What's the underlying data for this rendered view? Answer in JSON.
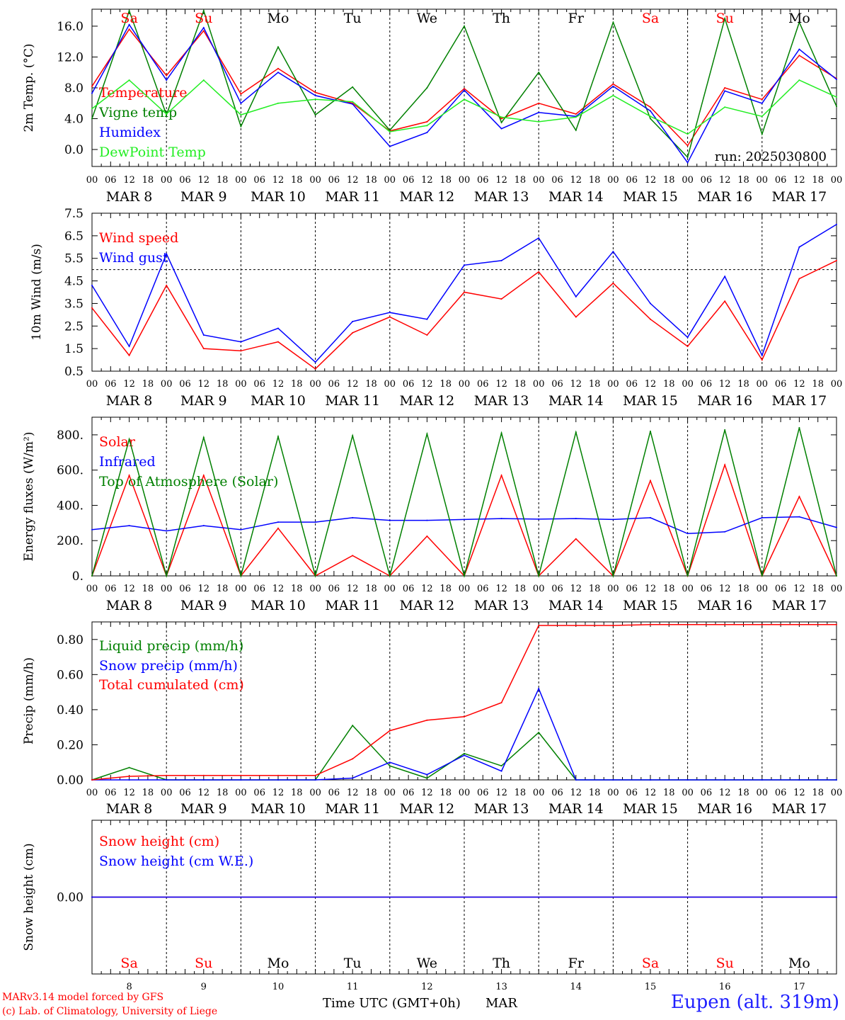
{
  "colors": {
    "red": "#ff0000",
    "blue": "#0000ff",
    "dark_green": "#008000",
    "light_green": "#22ee22",
    "black": "#000000"
  },
  "days": {
    "abbrev": [
      "Sa",
      "Su",
      "Mo",
      "Tu",
      "We",
      "Th",
      "Fr",
      "Sa",
      "Su",
      "Mo"
    ],
    "abbrev_colors": [
      "red",
      "red",
      "black",
      "black",
      "black",
      "black",
      "black",
      "red",
      "red",
      "black"
    ],
    "dates": [
      "MAR  8",
      "MAR  9",
      "MAR 10",
      "MAR 11",
      "MAR 12",
      "MAR 13",
      "MAR 14",
      "MAR 15",
      "MAR 16",
      "MAR 17"
    ],
    "numbers": [
      "8",
      "9",
      "10",
      "11",
      "12",
      "13",
      "14",
      "15",
      "16",
      "17"
    ],
    "hour_ticks": [
      "00",
      "06",
      "12",
      "18"
    ],
    "final_hour": "00"
  },
  "footer": {
    "credit_line1": "MARv3.14 model forced by GFS",
    "credit_line2": "(c) Lab. of Climatology, University of Liege",
    "time_label": "Time UTC (GMT+0h)",
    "month_label": "MAR",
    "station": "Eupen (alt. 319m)"
  },
  "chart_data": [
    {
      "type": "line",
      "ylabel": "2m Temp. (°C)",
      "ylim": [
        -2.2,
        18.2
      ],
      "yticks": [
        0,
        4,
        8,
        12,
        16
      ],
      "ytick_labels": [
        "0.0",
        "4.0",
        "8.0",
        "12.0",
        "16.0"
      ],
      "annotation": "run: 2025030800",
      "x_hours": [
        0,
        12,
        24,
        36,
        48,
        60,
        72,
        84,
        96,
        108,
        120,
        132,
        144,
        156,
        168,
        180,
        192,
        204,
        216,
        228,
        240
      ],
      "series": [
        {
          "name": "Temperature",
          "color": "red",
          "values": [
            8.2,
            15.6,
            9.6,
            15.4,
            7.2,
            10.5,
            7.4,
            6.0,
            2.4,
            3.6,
            7.9,
            4.0,
            6.0,
            4.6,
            8.5,
            5.5,
            0.5,
            8.0,
            6.5,
            12.2,
            9.2
          ]
        },
        {
          "name": "Vigne temp",
          "color": "dark_green",
          "values": [
            4.0,
            18.0,
            4.5,
            18.0,
            3.0,
            13.3,
            4.5,
            8.1,
            2.5,
            8.0,
            16.0,
            3.5,
            10.0,
            2.5,
            16.5,
            4.0,
            -1.0,
            17.0,
            2.0,
            16.5,
            5.6
          ]
        },
        {
          "name": "Humidex",
          "color": "blue",
          "values": [
            7.3,
            16.2,
            9.0,
            15.8,
            6.0,
            10.0,
            7.0,
            5.9,
            0.4,
            2.2,
            7.7,
            2.7,
            4.8,
            4.3,
            8.2,
            5.0,
            -1.7,
            7.6,
            6.0,
            13.0,
            9.1
          ]
        },
        {
          "name": "DewPoint Temp",
          "color": "light_green",
          "values": [
            5.3,
            9.0,
            4.6,
            9.0,
            4.5,
            6.0,
            6.5,
            6.2,
            2.3,
            3.1,
            6.5,
            4.2,
            3.6,
            4.2,
            7.0,
            4.3,
            2.0,
            5.5,
            4.3,
            9.0,
            6.8
          ]
        }
      ]
    },
    {
      "type": "line",
      "ylabel": "10m Wind (m/s)",
      "ylim": [
        0.5,
        7.5
      ],
      "yticks": [
        0.5,
        1.5,
        2.5,
        3.5,
        4.5,
        5.5,
        6.5,
        7.5
      ],
      "ytick_labels": [
        "0.5",
        "1.5",
        "2.5",
        "3.5",
        "4.5",
        "5.5",
        "6.5",
        "7.5"
      ],
      "reference_line": 5.0,
      "x_hours": [
        0,
        12,
        24,
        36,
        48,
        60,
        72,
        84,
        96,
        108,
        120,
        132,
        144,
        156,
        168,
        180,
        192,
        204,
        216,
        228,
        240
      ],
      "series": [
        {
          "name": "Wind speed",
          "color": "red",
          "values": [
            3.3,
            1.2,
            4.3,
            1.5,
            1.4,
            1.8,
            0.6,
            2.2,
            2.9,
            2.1,
            4.0,
            3.7,
            4.9,
            2.9,
            4.4,
            2.8,
            1.6,
            3.6,
            1.0,
            4.6,
            5.4
          ]
        },
        {
          "name": "Wind gust",
          "color": "blue",
          "values": [
            4.3,
            1.6,
            5.7,
            2.1,
            1.8,
            2.4,
            0.9,
            2.7,
            3.1,
            2.8,
            5.2,
            5.4,
            6.4,
            3.8,
            5.8,
            3.5,
            2.0,
            4.7,
            1.2,
            6.0,
            7.0
          ]
        }
      ]
    },
    {
      "type": "line",
      "ylabel": "Energy fluxes (W/m²)",
      "ylim": [
        0,
        900
      ],
      "yticks": [
        0,
        200,
        400,
        600,
        800
      ],
      "ytick_labels": [
        "0.",
        "200.",
        "400.",
        "600.",
        "800."
      ],
      "x_hours": [
        0,
        12,
        24,
        36,
        48,
        60,
        72,
        84,
        96,
        108,
        120,
        132,
        144,
        156,
        168,
        180,
        192,
        204,
        216,
        228,
        240
      ],
      "series": [
        {
          "name": "Solar",
          "color": "red",
          "values": [
            0,
            570,
            0,
            570,
            0,
            270,
            0,
            115,
            0,
            225,
            0,
            570,
            0,
            210,
            0,
            540,
            0,
            630,
            0,
            450,
            0
          ]
        },
        {
          "name": "Infrared",
          "color": "blue",
          "values": [
            262,
            285,
            255,
            285,
            262,
            305,
            305,
            330,
            315,
            315,
            320,
            325,
            322,
            325,
            320,
            330,
            240,
            250,
            330,
            335,
            275
          ]
        },
        {
          "name": "Top of Atmosphere (Solar)",
          "color": "dark_green",
          "values": [
            0,
            775,
            0,
            785,
            0,
            790,
            0,
            795,
            0,
            805,
            0,
            810,
            0,
            815,
            0,
            820,
            0,
            828,
            0,
            840,
            0
          ]
        }
      ]
    },
    {
      "type": "line",
      "ylabel": "Precip (mm/h)",
      "ylim": [
        0,
        0.9
      ],
      "yticks": [
        0,
        0.2,
        0.4,
        0.6,
        0.8
      ],
      "ytick_labels": [
        "0.00",
        "0.20",
        "0.40",
        "0.60",
        "0.80"
      ],
      "x_hours": [
        0,
        12,
        24,
        36,
        48,
        60,
        72,
        84,
        96,
        108,
        120,
        132,
        144,
        156,
        168,
        180,
        192,
        204,
        216,
        228,
        240
      ],
      "series": [
        {
          "name": "Liquid precip (mm/h)",
          "color": "dark_green",
          "values": [
            0,
            0.07,
            0,
            0,
            0,
            0,
            0,
            0.31,
            0.08,
            0.01,
            0.15,
            0.08,
            0.27,
            0,
            0,
            0,
            0,
            0,
            0,
            0,
            0
          ]
        },
        {
          "name": "Snow precip (mm/h)",
          "color": "blue",
          "values": [
            0,
            0,
            0,
            0,
            0,
            0,
            0,
            0.01,
            0.1,
            0.03,
            0.14,
            0.05,
            0.52,
            0,
            0,
            0,
            0,
            0,
            0,
            0,
            0
          ]
        },
        {
          "name": "Total cumulated (cm)",
          "color": "red",
          "values": [
            0,
            0.02,
            0.025,
            0.025,
            0.025,
            0.025,
            0.025,
            0.12,
            0.28,
            0.34,
            0.36,
            0.44,
            0.88,
            0.88,
            0.88,
            0.885,
            0.885,
            0.885,
            0.885,
            0.885,
            0.885
          ]
        }
      ]
    },
    {
      "type": "line",
      "ylabel": "Snow height (cm)",
      "ylim": [
        -0.5,
        0.5
      ],
      "yticks": [
        0
      ],
      "ytick_labels": [
        "0.00"
      ],
      "x_hours": [
        0,
        240
      ],
      "series": [
        {
          "name": "Snow height (cm)",
          "color": "red",
          "values": [
            0,
            0
          ]
        },
        {
          "name": "Snow height (cm W.E.)",
          "color": "blue",
          "values": [
            0,
            0
          ]
        }
      ]
    }
  ]
}
